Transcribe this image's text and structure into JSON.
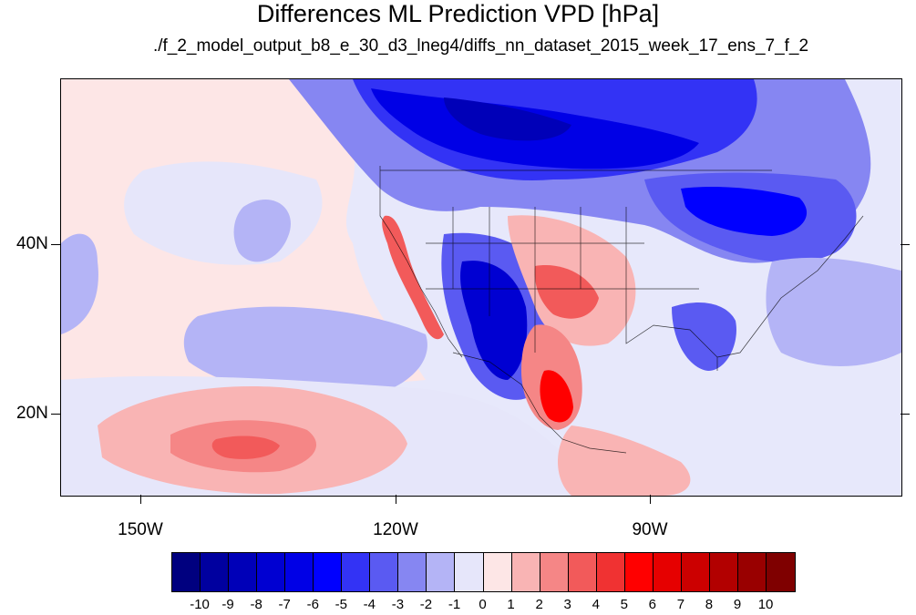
{
  "title": "Differences ML Prediction VPD [hPa]",
  "subtitle": "./f_2_model_output_b8_e_30_d3_lneg4/diffs_nn_dataset_2015_week_17_ens_7_f_2",
  "lat_labels": [
    {
      "text": "40N",
      "lat": 40
    },
    {
      "text": "20N",
      "lat": 20
    }
  ],
  "lon_labels": [
    {
      "text": "150W",
      "lon": -150
    },
    {
      "text": "120W",
      "lon": -120
    },
    {
      "text": "90W",
      "lon": -90
    }
  ],
  "colorbar": {
    "labels": [
      "-10",
      "-9",
      "-8",
      "-7",
      "-6",
      "-5",
      "-4",
      "-3",
      "-2",
      "-1",
      "0",
      "1",
      "2",
      "3",
      "4",
      "5",
      "6",
      "7",
      "8",
      "9",
      "10"
    ],
    "colors": [
      "#00007f",
      "#00009f",
      "#0000b8",
      "#0000d2",
      "#0000e6",
      "#0000ff",
      "#3333f5",
      "#5a5af2",
      "#8686f2",
      "#b4b4f6",
      "#e6e6fa",
      "#fde6e6",
      "#f9b4b4",
      "#f58686",
      "#f25a5a",
      "#f03232",
      "#ff0000",
      "#e60000",
      "#cc0000",
      "#b20000",
      "#990000",
      "#7f0000"
    ]
  }
}
